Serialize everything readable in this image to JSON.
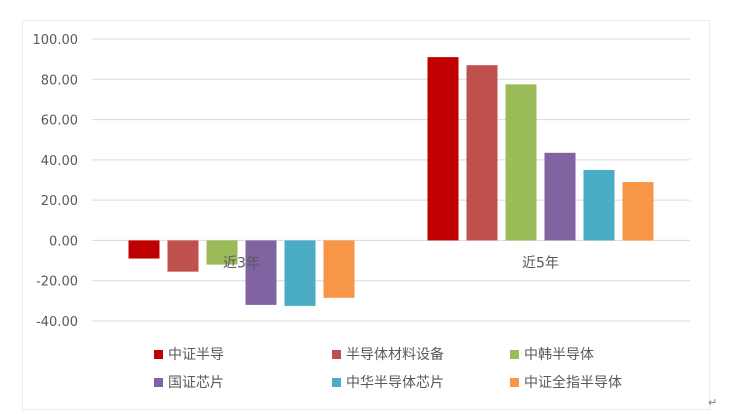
{
  "chart_data": {
    "type": "bar",
    "categories": [
      "近3年",
      "近5年"
    ],
    "series": [
      {
        "name": "中证半导",
        "color": "#c00000",
        "values": [
          -9,
          91
        ]
      },
      {
        "name": "半导体材料设备",
        "color": "#c0504d",
        "values": [
          -15.5,
          87
        ]
      },
      {
        "name": "中韩半导体",
        "color": "#9bbb59",
        "values": [
          -12,
          77.5
        ]
      },
      {
        "name": "国证芯片",
        "color": "#8064a2",
        "values": [
          -32,
          43.5
        ]
      },
      {
        "name": "中华半导体芯片",
        "color": "#4bacc6",
        "values": [
          -32.5,
          35
        ]
      },
      {
        "name": "中证全指半导体",
        "color": "#f79646",
        "values": [
          -28.5,
          29
        ]
      }
    ],
    "yticks": [
      "100.00",
      "80.00",
      "60.00",
      "40.00",
      "20.00",
      "0.00",
      "-20.00",
      "-40.00"
    ],
    "ylim": [
      -40,
      100
    ],
    "grid": true,
    "legend_position": "bottom",
    "title": "",
    "xlabel": "",
    "ylabel": ""
  },
  "return_mark": "↵"
}
